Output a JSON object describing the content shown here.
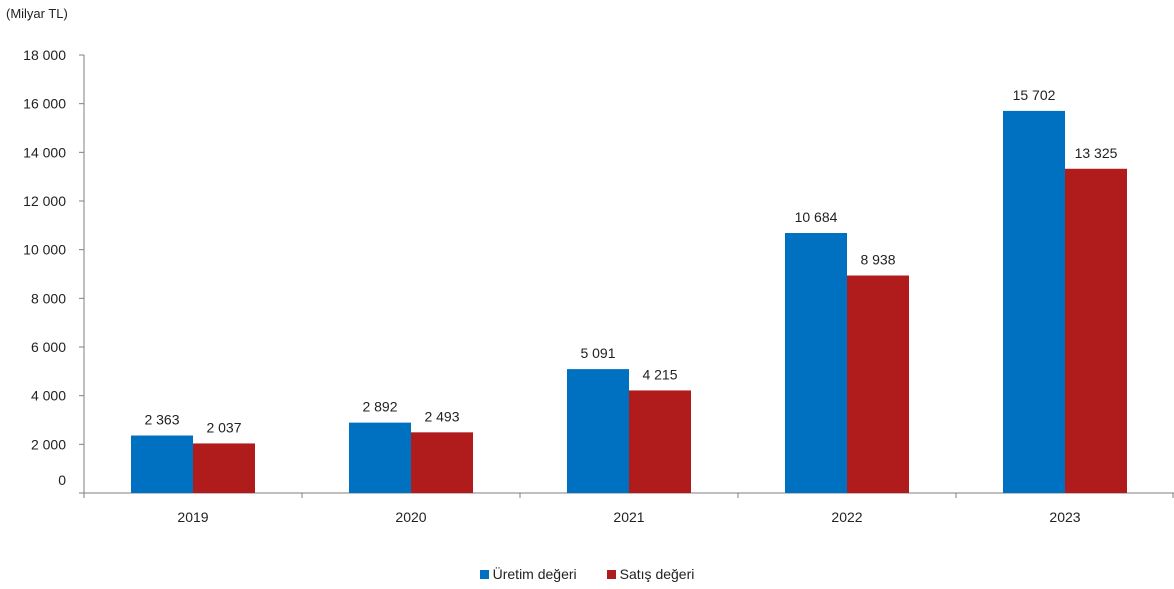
{
  "chart_data": {
    "type": "bar",
    "ylabel": "(Milyar TL)",
    "categories": [
      "2019",
      "2020",
      "2021",
      "2022",
      "2023"
    ],
    "series": [
      {
        "name": "Üretim değeri",
        "color": "#0070c0",
        "values": [
          2363,
          2892,
          5091,
          10684,
          15702
        ],
        "labels": [
          "2 363",
          "2 892",
          "5 091",
          "10 684",
          "15 702"
        ]
      },
      {
        "name": "Satış değeri",
        "color": "#b01c1c",
        "values": [
          2037,
          2493,
          4215,
          8938,
          13325
        ],
        "labels": [
          "2 037",
          "2 493",
          "4 215",
          "8 938",
          "13 325"
        ]
      }
    ],
    "ylim": [
      0,
      18000
    ],
    "yticks": [
      0,
      2000,
      4000,
      6000,
      8000,
      10000,
      12000,
      14000,
      16000,
      18000
    ],
    "ytick_labels": [
      "0",
      "2 000",
      "4 000",
      "6 000",
      "8 000",
      "10 000",
      "12 000",
      "14 000",
      "16 000",
      "18 000"
    ],
    "grid": false,
    "legend_position": "bottom-center"
  }
}
